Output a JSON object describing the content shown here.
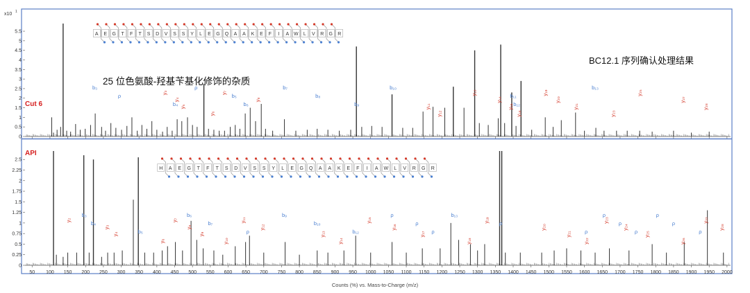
{
  "figure": {
    "title_right": "BC12.1 序列确认处理结果",
    "annotation_top": "25 位色氨酸-羟基苄基化修饰的杂质",
    "xaxis_label": "Counts (%) vs. Mass-to-Charge (m/z)",
    "colors": {
      "frame": "#5b7fc6",
      "b_ions": "#4a7fd0",
      "y_ions": "#d43a2a",
      "trace": "#333333",
      "label_red": "#d62020"
    }
  },
  "chart_data": [
    {
      "type": "bar",
      "panel_label": "Cut 6",
      "yscale_label": "x10",
      "yscale_exp": "1",
      "xlim": [
        30,
        2010
      ],
      "ylim": [
        0,
        5.9
      ],
      "xticks": [
        50,
        100,
        150,
        200,
        250,
        300,
        350,
        400,
        450,
        500,
        550,
        600,
        650,
        700,
        750,
        800,
        850,
        900,
        950,
        1000,
        1050,
        1100,
        1150,
        1200,
        1250,
        1300,
        1350,
        1400,
        1450,
        1500,
        1550,
        1600,
        1650,
        1700,
        1750,
        1800,
        1850,
        1900,
        1950,
        2000
      ],
      "yticks": [
        0,
        0.5,
        1,
        1.5,
        2,
        2.5,
        3,
        3.5,
        4,
        4.5,
        5,
        5.5
      ],
      "sequence": [
        "A",
        "E",
        "G",
        "T",
        "F",
        "T",
        "S",
        "D",
        "V",
        "S",
        "S",
        "Y",
        "L",
        "E",
        "G",
        "Q",
        "A",
        "A",
        "K",
        "E",
        "F",
        "I",
        "A",
        "W",
        "L",
        "V",
        "R",
        "G",
        "R"
      ],
      "peaks": [
        [
          105,
          1.0
        ],
        [
          110,
          0.2
        ],
        [
          120,
          0.35
        ],
        [
          130,
          0.5
        ],
        [
          137,
          5.9
        ],
        [
          147,
          0.3
        ],
        [
          158,
          0.25
        ],
        [
          172,
          0.65
        ],
        [
          185,
          0.35
        ],
        [
          199,
          0.4
        ],
        [
          214,
          0.6
        ],
        [
          227,
          1.2
        ],
        [
          245,
          0.5
        ],
        [
          256,
          0.3
        ],
        [
          271,
          0.7
        ],
        [
          285,
          0.45
        ],
        [
          301,
          0.35
        ],
        [
          316,
          0.55
        ],
        [
          330,
          1.0
        ],
        [
          345,
          0.3
        ],
        [
          358,
          0.6
        ],
        [
          372,
          0.4
        ],
        [
          386,
          0.8
        ],
        [
          400,
          0.35
        ],
        [
          416,
          0.25
        ],
        [
          429,
          0.5
        ],
        [
          443,
          0.3
        ],
        [
          457,
          0.9
        ],
        [
          470,
          0.8
        ],
        [
          486,
          1.0
        ],
        [
          500,
          0.6
        ],
        [
          513,
          0.5
        ],
        [
          532,
          2.75
        ],
        [
          545,
          0.4
        ],
        [
          560,
          0.35
        ],
        [
          575,
          0.3
        ],
        [
          590,
          0.3
        ],
        [
          606,
          0.5
        ],
        [
          620,
          0.6
        ],
        [
          633,
          0.4
        ],
        [
          648,
          1.2
        ],
        [
          662,
          1.5
        ],
        [
          677,
          0.8
        ],
        [
          693,
          1.7
        ],
        [
          705,
          0.4
        ],
        [
          725,
          0.3
        ],
        [
          758,
          0.9
        ],
        [
          790,
          0.3
        ],
        [
          822,
          0.35
        ],
        [
          850,
          0.4
        ],
        [
          880,
          0.35
        ],
        [
          912,
          0.3
        ],
        [
          944,
          0.35
        ],
        [
          960,
          4.7
        ],
        [
          975,
          0.5
        ],
        [
          1003,
          0.55
        ],
        [
          1032,
          0.5
        ],
        [
          1060,
          2.2
        ],
        [
          1090,
          0.45
        ],
        [
          1118,
          0.45
        ],
        [
          1147,
          1.3
        ],
        [
          1175,
          1.55
        ],
        [
          1208,
          1.5
        ],
        [
          1232,
          2.6
        ],
        [
          1262,
          1.5
        ],
        [
          1292,
          4.5
        ],
        [
          1305,
          0.7
        ],
        [
          1330,
          0.6
        ],
        [
          1358,
          0.95
        ],
        [
          1365,
          4.8
        ],
        [
          1376,
          0.7
        ],
        [
          1396,
          2.3
        ],
        [
          1408,
          0.55
        ],
        [
          1422,
          2.9
        ],
        [
          1452,
          0.35
        ],
        [
          1490,
          1.0
        ],
        [
          1512,
          0.5
        ],
        [
          1535,
          0.85
        ],
        [
          1575,
          1.25
        ],
        [
          1600,
          0.3
        ],
        [
          1632,
          0.45
        ],
        [
          1655,
          0.3
        ],
        [
          1690,
          0.3
        ],
        [
          1720,
          0.3
        ],
        [
          1755,
          0.3
        ],
        [
          1790,
          0.25
        ],
        [
          1850,
          0.3
        ],
        [
          1900,
          0.2
        ],
        [
          1950,
          0.25
        ]
      ],
      "b_ion_labels": [
        [
          "b₃",
          226
        ],
        [
          "ρ",
          295
        ],
        [
          "b₄",
          452
        ],
        [
          "ρ",
          510
        ],
        [
          "b₅",
          617
        ],
        [
          "b₆",
          650
        ],
        [
          "b₇",
          760
        ],
        [
          "b₈",
          852
        ],
        [
          "b₉",
          961
        ],
        [
          "b₁₀",
          1063
        ],
        [
          "b₁₁",
          1400
        ],
        [
          "b₁₂",
          1410
        ],
        [
          "b₁₃",
          1630
        ]
      ],
      "y_ion_labels": [
        [
          "y₃",
          427
        ],
        [
          "y₄",
          460
        ],
        [
          "y₅",
          477
        ],
        [
          "y₆",
          560
        ],
        [
          "y₇",
          593
        ],
        [
          "y₈",
          688
        ],
        [
          "y₁₁",
          1165
        ],
        [
          "y₁₂",
          1197
        ],
        [
          "y₁₃",
          1295
        ],
        [
          "y₁₄",
          1365
        ],
        [
          "y₁₅",
          1397
        ],
        [
          "y₁₈",
          1420
        ],
        [
          "y₁₉",
          1495
        ],
        [
          "y₂₀",
          1530
        ],
        [
          "y₂₁",
          1580
        ],
        [
          "y₂₃",
          1685
        ],
        [
          "y₂₅",
          1760
        ],
        [
          "y₂₇",
          1880
        ],
        [
          "y₂₈",
          1945
        ]
      ]
    },
    {
      "type": "bar",
      "panel_label": "API",
      "yscale_label": "",
      "yscale_exp": "",
      "xlim": [
        30,
        2010
      ],
      "ylim": [
        0,
        2.7
      ],
      "xticks": [
        50,
        100,
        150,
        200,
        250,
        300,
        350,
        400,
        450,
        500,
        550,
        600,
        650,
        700,
        750,
        800,
        850,
        900,
        950,
        1000,
        1050,
        1100,
        1150,
        1200,
        1250,
        1300,
        1350,
        1400,
        1450,
        1500,
        1550,
        1600,
        1650,
        1700,
        1750,
        1800,
        1850,
        1900,
        1950,
        2000
      ],
      "yticks": [
        0,
        0.25,
        0.5,
        0.75,
        1,
        1.25,
        1.5,
        1.75,
        2,
        2.25,
        2.5
      ],
      "sequence": [
        "H",
        "A",
        "E",
        "G",
        "T",
        "F",
        "T",
        "S",
        "D",
        "V",
        "S",
        "S",
        "Y",
        "L",
        "E",
        "G",
        "Q",
        "A",
        "A",
        "K",
        "E",
        "F",
        "I",
        "A",
        "W",
        "L",
        "V",
        "R",
        "G",
        "R"
      ],
      "peaks": [
        [
          110,
          2.7
        ],
        [
          118,
          0.25
        ],
        [
          137,
          0.2
        ],
        [
          150,
          0.3
        ],
        [
          175,
          0.3
        ],
        [
          195,
          2.6
        ],
        [
          210,
          0.3
        ],
        [
          222,
          2.5
        ],
        [
          245,
          0.2
        ],
        [
          262,
          0.3
        ],
        [
          280,
          0.3
        ],
        [
          303,
          0.35
        ],
        [
          334,
          1.55
        ],
        [
          348,
          2.55
        ],
        [
          366,
          0.3
        ],
        [
          391,
          0.3
        ],
        [
          415,
          0.35
        ],
        [
          430,
          0.45
        ],
        [
          452,
          0.55
        ],
        [
          472,
          0.35
        ],
        [
          496,
          1.05
        ],
        [
          512,
          0.6
        ],
        [
          530,
          0.4
        ],
        [
          560,
          0.35
        ],
        [
          585,
          0.25
        ],
        [
          620,
          0.45
        ],
        [
          649,
          0.55
        ],
        [
          660,
          0.7
        ],
        [
          700,
          0.3
        ],
        [
          760,
          0.55
        ],
        [
          800,
          0.25
        ],
        [
          850,
          0.35
        ],
        [
          880,
          0.3
        ],
        [
          925,
          0.35
        ],
        [
          958,
          0.7
        ],
        [
          1000,
          0.3
        ],
        [
          1060,
          0.55
        ],
        [
          1100,
          0.3
        ],
        [
          1145,
          0.4
        ],
        [
          1195,
          0.4
        ],
        [
          1225,
          1.0
        ],
        [
          1247,
          0.6
        ],
        [
          1280,
          0.5
        ],
        [
          1300,
          0.35
        ],
        [
          1320,
          0.5
        ],
        [
          1362,
          2.7
        ],
        [
          1368,
          2.7
        ],
        [
          1378,
          0.3
        ],
        [
          1420,
          0.3
        ],
        [
          1480,
          0.3
        ],
        [
          1515,
          0.35
        ],
        [
          1550,
          0.4
        ],
        [
          1590,
          0.35
        ],
        [
          1630,
          0.3
        ],
        [
          1670,
          0.4
        ],
        [
          1725,
          0.35
        ],
        [
          1790,
          0.5
        ],
        [
          1830,
          0.3
        ],
        [
          1880,
          0.55
        ],
        [
          1945,
          1.3
        ],
        [
          1990,
          0.3
        ]
      ],
      "b_ion_labels": [
        [
          "b₃",
          196
        ],
        [
          "b₄",
          222
        ],
        [
          "b₅",
          354
        ],
        [
          "b₆",
          491
        ],
        [
          "b₇",
          550
        ],
        [
          "ρ",
          655
        ],
        [
          "b₉",
          758
        ],
        [
          "b₁₀",
          850
        ],
        [
          "b₁₂",
          958
        ],
        [
          "ρ",
          1060
        ],
        [
          "ρ",
          1130
        ],
        [
          "ρ",
          1175
        ],
        [
          "b₁₃",
          1235
        ],
        [
          "ρ",
          1365
        ],
        [
          "ρ",
          1605
        ],
        [
          "ρ",
          1655
        ],
        [
          "ρ",
          1700
        ],
        [
          "ρ",
          1745
        ],
        [
          "ρ",
          1805
        ],
        [
          "ρ",
          1850
        ],
        [
          "ρ",
          1925
        ]
      ],
      "y_ion_labels": [
        [
          "y₂",
          157
        ],
        [
          "y₃",
          264
        ],
        [
          "y₄",
          288
        ],
        [
          "y₆",
          420
        ],
        [
          "y₇",
          455
        ],
        [
          "y₈",
          495
        ],
        [
          "y₉",
          530
        ],
        [
          "y₁₀",
          598
        ],
        [
          "y₁₁",
          647
        ],
        [
          "y₁₂",
          700
        ],
        [
          "y₁₃",
          870
        ],
        [
          "y₁₄",
          920
        ],
        [
          "y₁₅",
          1000
        ],
        [
          "y₁₆",
          1070
        ],
        [
          "y₁₇",
          1150
        ],
        [
          "y₁₈",
          1280
        ],
        [
          "y₁₉",
          1330
        ],
        [
          "y₂₀",
          1490
        ],
        [
          "y₂₁",
          1560
        ],
        [
          "y₂₂",
          1610
        ],
        [
          "y₂₃",
          1665
        ],
        [
          "y₂₄",
          1720
        ],
        [
          "y₂₅",
          1780
        ],
        [
          "y₂₆",
          1880
        ],
        [
          "y₂₇",
          1945
        ],
        [
          "y₂₈",
          1990
        ]
      ]
    }
  ]
}
